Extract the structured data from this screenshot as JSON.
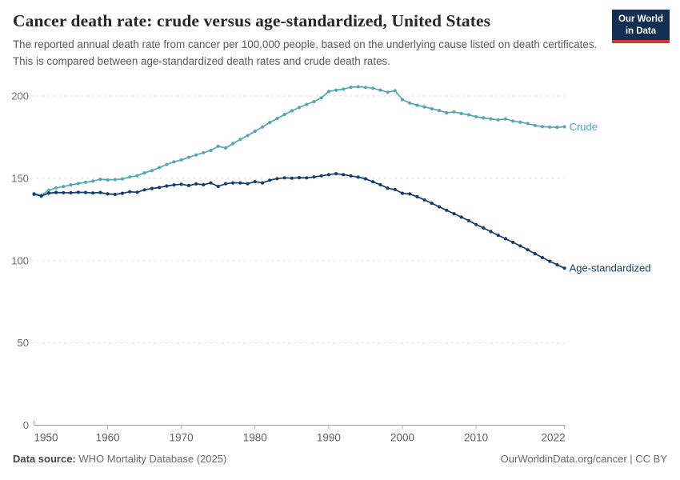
{
  "logo": {
    "line1": "Our World",
    "line2": "in Data"
  },
  "footer": {
    "source_label": "Data source:",
    "source_value": " WHO Mortality Database (2025)",
    "credit": "OurWorldinData.org/cancer | CC BY"
  },
  "chart_data": {
    "type": "line",
    "title": "Cancer death rate: crude versus age-standardized, United States",
    "subtitle": "The reported annual death rate from cancer per 100,000 people, based on the underlying cause listed on death certificates. This is compared between age-standardized death rates and crude death rates.",
    "xlabel": "",
    "ylabel": "",
    "xlim": [
      1950,
      2022
    ],
    "ylim": [
      0,
      210
    ],
    "xticks": [
      1950,
      1960,
      1970,
      1980,
      1990,
      2000,
      2010,
      2022
    ],
    "yticks": [
      0,
      50,
      100,
      150,
      200
    ],
    "grid": "horizontal-dashed",
    "legend_position": "line-end-labels",
    "x": [
      1950,
      1951,
      1952,
      1953,
      1954,
      1955,
      1956,
      1957,
      1958,
      1959,
      1960,
      1961,
      1962,
      1963,
      1964,
      1965,
      1966,
      1967,
      1968,
      1969,
      1970,
      1971,
      1972,
      1973,
      1974,
      1975,
      1976,
      1977,
      1978,
      1979,
      1980,
      1981,
      1982,
      1983,
      1984,
      1985,
      1986,
      1987,
      1988,
      1989,
      1990,
      1991,
      1992,
      1993,
      1994,
      1995,
      1996,
      1997,
      1998,
      1999,
      2000,
      2001,
      2002,
      2003,
      2004,
      2005,
      2006,
      2007,
      2008,
      2009,
      2010,
      2011,
      2012,
      2013,
      2014,
      2015,
      2016,
      2017,
      2018,
      2019,
      2020,
      2021,
      2022
    ],
    "series": [
      {
        "name": "Crude",
        "color": "#56A6B6",
        "values": [
          140.8,
          139.7,
          142.7,
          144.2,
          145.0,
          146.0,
          146.8,
          147.6,
          148.3,
          149.4,
          149.0,
          149.2,
          149.6,
          150.8,
          151.6,
          153.3,
          154.7,
          156.5,
          158.4,
          160.0,
          161.2,
          162.7,
          164.2,
          165.6,
          166.9,
          169.5,
          168.4,
          171.1,
          173.6,
          176.0,
          178.6,
          181.2,
          183.9,
          186.3,
          188.7,
          191.0,
          193.0,
          194.9,
          196.6,
          198.9,
          202.7,
          203.6,
          204.2,
          205.3,
          205.6,
          205.2,
          204.7,
          203.6,
          202.3,
          203.2,
          197.8,
          195.7,
          194.4,
          193.4,
          192.2,
          191.2,
          189.8,
          190.4,
          189.3,
          188.6,
          187.4,
          186.7,
          186.1,
          185.5,
          186.1,
          184.8,
          184.1,
          183.3,
          182.1,
          181.4,
          181.1,
          181.0,
          181.3
        ]
      },
      {
        "name": "Age-standardized",
        "color": "#143D6E",
        "values": [
          140.3,
          139.2,
          141.0,
          141.4,
          141.3,
          141.2,
          141.5,
          141.4,
          141.1,
          141.4,
          140.5,
          140.2,
          140.9,
          141.8,
          141.5,
          143.0,
          143.8,
          144.4,
          145.3,
          146.0,
          146.4,
          145.6,
          146.6,
          146.1,
          147.2,
          145.1,
          146.7,
          147.2,
          147.2,
          146.7,
          148.0,
          147.2,
          148.8,
          149.8,
          150.3,
          150.1,
          150.4,
          150.3,
          150.8,
          151.5,
          152.2,
          152.8,
          152.2,
          151.5,
          150.7,
          149.7,
          147.9,
          146.1,
          144.0,
          143.2,
          140.9,
          140.5,
          138.8,
          136.9,
          134.8,
          132.7,
          130.6,
          128.5,
          126.4,
          124.3,
          121.9,
          119.8,
          117.6,
          115.4,
          113.3,
          111.1,
          108.9,
          106.6,
          104.2,
          101.8,
          99.6,
          97.5,
          95.4
        ]
      }
    ]
  }
}
